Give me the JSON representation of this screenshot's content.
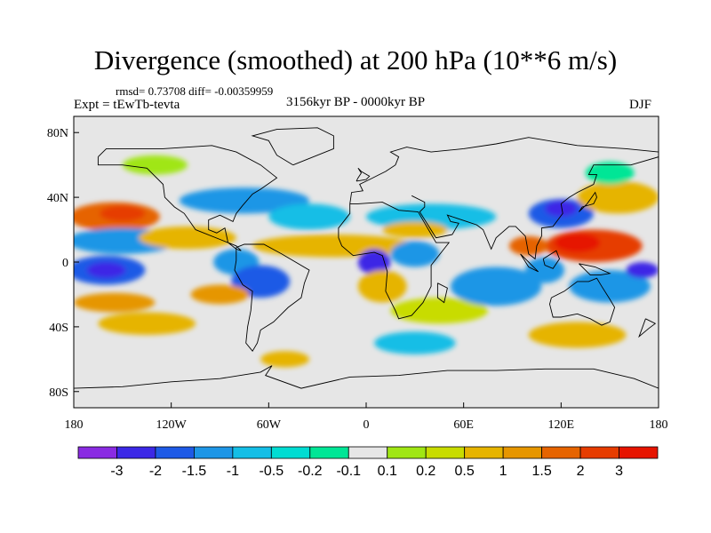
{
  "title": "Divergence (smoothed) at 200 hPa (10**6 m/s)",
  "stats": "rmsd= 0.73708 diff= -0.00359959",
  "experiment": "Expt = tEwTb-tevta",
  "period": "3156kyr BP - 0000kyr BP",
  "season": "DJF",
  "map": {
    "projection": "cylindrical-equidistant",
    "lon_range": [
      -180,
      180
    ],
    "lat_range": [
      -90,
      90
    ],
    "background_color": "#e6e6e6",
    "coastline_color": "#000000"
  },
  "x_ticks": [
    {
      "value": -180,
      "label": "180"
    },
    {
      "value": -120,
      "label": "120W"
    },
    {
      "value": -60,
      "label": "60W"
    },
    {
      "value": 0,
      "label": "0"
    },
    {
      "value": 60,
      "label": "60E"
    },
    {
      "value": 120,
      "label": "120E"
    },
    {
      "value": 180,
      "label": "180"
    }
  ],
  "y_ticks": [
    {
      "value": 80,
      "label": "80N"
    },
    {
      "value": 40,
      "label": "40N"
    },
    {
      "value": 0,
      "label": "0"
    },
    {
      "value": -40,
      "label": "40S"
    },
    {
      "value": -80,
      "label": "80S"
    }
  ],
  "colorbar": {
    "colors": [
      "#8a2be2",
      "#3c28e6",
      "#1e5ae6",
      "#1e96e6",
      "#14bee6",
      "#00dcd2",
      "#00e696",
      "#e6e6e6",
      "#a0e614",
      "#c8dc00",
      "#e6b400",
      "#e69600",
      "#e66400",
      "#e63c00",
      "#e61400"
    ],
    "labels": [
      "-3",
      "-2",
      "-1.5",
      "-1",
      "-0.5",
      "-0.2",
      "-0.1",
      "0.1",
      "0.2",
      "0.5",
      "1",
      "1.5",
      "2",
      "3"
    ]
  },
  "regions": [
    {
      "lon": -155,
      "lat": 28,
      "rx": 28,
      "ry": 9,
      "color": "#e66400"
    },
    {
      "lon": -150,
      "lat": 30,
      "rx": 14,
      "ry": 5,
      "color": "#e63c00"
    },
    {
      "lon": -150,
      "lat": 13,
      "rx": 34,
      "ry": 8,
      "color": "#1e96e6"
    },
    {
      "lon": -160,
      "lat": -5,
      "rx": 24,
      "ry": 9,
      "color": "#1e5ae6"
    },
    {
      "lon": -160,
      "lat": -5,
      "rx": 12,
      "ry": 5,
      "color": "#3c28e6"
    },
    {
      "lon": -155,
      "lat": -25,
      "rx": 25,
      "ry": 6,
      "color": "#e69600"
    },
    {
      "lon": -135,
      "lat": -38,
      "rx": 30,
      "ry": 7,
      "color": "#e6b400"
    },
    {
      "lon": -110,
      "lat": 15,
      "rx": 30,
      "ry": 7,
      "color": "#e6b400"
    },
    {
      "lon": -80,
      "lat": 0,
      "rx": 14,
      "ry": 8,
      "color": "#1e96e6"
    },
    {
      "lon": -65,
      "lat": -12,
      "rx": 18,
      "ry": 10,
      "color": "#1e5ae6"
    },
    {
      "lon": -90,
      "lat": -20,
      "rx": 18,
      "ry": 6,
      "color": "#e69600"
    },
    {
      "lon": -75,
      "lat": 38,
      "rx": 40,
      "ry": 8,
      "color": "#1e96e6"
    },
    {
      "lon": -35,
      "lat": 28,
      "rx": 25,
      "ry": 8,
      "color": "#14bee6"
    },
    {
      "lon": -20,
      "lat": 10,
      "rx": 50,
      "ry": 7,
      "color": "#e6b400"
    },
    {
      "lon": 5,
      "lat": 0,
      "rx": 10,
      "ry": 8,
      "color": "#3c28e6"
    },
    {
      "lon": 30,
      "lat": 5,
      "rx": 15,
      "ry": 8,
      "color": "#1e96e6"
    },
    {
      "lon": 40,
      "lat": 28,
      "rx": 40,
      "ry": 8,
      "color": "#14bee6"
    },
    {
      "lon": 30,
      "lat": 20,
      "rx": 20,
      "ry": 5,
      "color": "#e6b400"
    },
    {
      "lon": 10,
      "lat": -15,
      "rx": 15,
      "ry": 10,
      "color": "#e6b400"
    },
    {
      "lon": 45,
      "lat": -30,
      "rx": 30,
      "ry": 8,
      "color": "#c8dc00"
    },
    {
      "lon": 80,
      "lat": -15,
      "rx": 28,
      "ry": 12,
      "color": "#1e96e6"
    },
    {
      "lon": 120,
      "lat": 30,
      "rx": 20,
      "ry": 9,
      "color": "#1e5ae6"
    },
    {
      "lon": 120,
      "lat": 33,
      "rx": 10,
      "ry": 5,
      "color": "#3c28e6"
    },
    {
      "lon": 140,
      "lat": 10,
      "rx": 30,
      "ry": 10,
      "color": "#e63c00"
    },
    {
      "lon": 130,
      "lat": 12,
      "rx": 14,
      "ry": 6,
      "color": "#e61400"
    },
    {
      "lon": 100,
      "lat": 10,
      "rx": 12,
      "ry": 6,
      "color": "#e66400"
    },
    {
      "lon": 110,
      "lat": -5,
      "rx": 12,
      "ry": 8,
      "color": "#1e96e6"
    },
    {
      "lon": 150,
      "lat": -15,
      "rx": 25,
      "ry": 10,
      "color": "#1e96e6"
    },
    {
      "lon": 170,
      "lat": -5,
      "rx": 10,
      "ry": 5,
      "color": "#3c28e6"
    },
    {
      "lon": 155,
      "lat": 40,
      "rx": 25,
      "ry": 10,
      "color": "#e6b400"
    },
    {
      "lon": 130,
      "lat": -45,
      "rx": 30,
      "ry": 8,
      "color": "#e6b400"
    },
    {
      "lon": 30,
      "lat": -50,
      "rx": 25,
      "ry": 7,
      "color": "#14bee6"
    },
    {
      "lon": -50,
      "lat": -60,
      "rx": 15,
      "ry": 5,
      "color": "#e6b400"
    },
    {
      "lon": 150,
      "lat": 55,
      "rx": 15,
      "ry": 7,
      "color": "#00e696"
    },
    {
      "lon": -130,
      "lat": 60,
      "rx": 20,
      "ry": 6,
      "color": "#a0e614"
    }
  ],
  "coastlines": [
    [
      [
        -165,
        65
      ],
      [
        -160,
        70
      ],
      [
        -140,
        70
      ],
      [
        -125,
        70
      ],
      [
        -95,
        72
      ],
      [
        -80,
        68
      ],
      [
        -65,
        60
      ],
      [
        -55,
        52
      ],
      [
        -65,
        45
      ],
      [
        -70,
        42
      ],
      [
        -76,
        35
      ],
      [
        -80,
        30
      ],
      [
        -82,
        25
      ],
      [
        -90,
        29
      ],
      [
        -97,
        26
      ],
      [
        -97,
        20
      ],
      [
        -92,
        18
      ],
      [
        -87,
        21
      ],
      [
        -85,
        12
      ],
      [
        -80,
        8
      ],
      [
        -77,
        7
      ],
      [
        -80,
        10
      ],
      [
        -90,
        14
      ],
      [
        -105,
        20
      ],
      [
        -112,
        30
      ],
      [
        -118,
        34
      ],
      [
        -124,
        40
      ],
      [
        -125,
        48
      ],
      [
        -135,
        58
      ],
      [
        -150,
        60
      ],
      [
        -165,
        60
      ],
      [
        -165,
        65
      ]
    ],
    [
      [
        -80,
        9
      ],
      [
        -75,
        11
      ],
      [
        -63,
        11
      ],
      [
        -52,
        5
      ],
      [
        -35,
        -5
      ],
      [
        -38,
        -13
      ],
      [
        -40,
        -22
      ],
      [
        -48,
        -28
      ],
      [
        -57,
        -37
      ],
      [
        -65,
        -42
      ],
      [
        -67,
        -50
      ],
      [
        -70,
        -55
      ],
      [
        -74,
        -50
      ],
      [
        -73,
        -40
      ],
      [
        -71,
        -30
      ],
      [
        -70,
        -18
      ],
      [
        -76,
        -14
      ],
      [
        -81,
        -5
      ],
      [
        -80,
        1
      ],
      [
        -80,
        9
      ]
    ],
    [
      [
        -10,
        36
      ],
      [
        -5,
        36
      ],
      [
        10,
        37
      ],
      [
        20,
        32
      ],
      [
        32,
        31
      ],
      [
        43,
        12
      ],
      [
        51,
        12
      ],
      [
        40,
        -2
      ],
      [
        40,
        -15
      ],
      [
        35,
        -25
      ],
      [
        28,
        -33
      ],
      [
        20,
        -35
      ],
      [
        18,
        -30
      ],
      [
        12,
        -18
      ],
      [
        13,
        -6
      ],
      [
        10,
        4
      ],
      [
        5,
        6
      ],
      [
        -8,
        4
      ],
      [
        -15,
        10
      ],
      [
        -17,
        15
      ],
      [
        -17,
        21
      ],
      [
        -10,
        30
      ],
      [
        -10,
        36
      ]
    ],
    [
      [
        -10,
        36
      ],
      [
        -9,
        43
      ],
      [
        -2,
        44
      ],
      [
        -4,
        48
      ],
      [
        2,
        51
      ],
      [
        8,
        54
      ],
      [
        12,
        56
      ],
      [
        18,
        60
      ],
      [
        20,
        65
      ],
      [
        15,
        68
      ],
      [
        25,
        71
      ],
      [
        40,
        68
      ],
      [
        60,
        70
      ],
      [
        80,
        73
      ],
      [
        100,
        77
      ],
      [
        130,
        72
      ],
      [
        160,
        70
      ],
      [
        180,
        68
      ]
    ],
    [
      [
        28,
        41
      ],
      [
        36,
        37
      ],
      [
        36,
        34
      ],
      [
        33,
        31
      ],
      [
        43,
        15
      ],
      [
        53,
        17
      ],
      [
        57,
        24
      ],
      [
        52,
        25
      ],
      [
        50,
        29
      ],
      [
        56,
        27
      ],
      [
        62,
        25
      ],
      [
        68,
        23
      ],
      [
        72,
        20
      ],
      [
        77,
        8
      ],
      [
        80,
        15
      ],
      [
        88,
        22
      ],
      [
        92,
        22
      ],
      [
        98,
        16
      ],
      [
        100,
        5
      ],
      [
        104,
        2
      ],
      [
        105,
        10
      ],
      [
        108,
        16
      ],
      [
        108,
        21
      ],
      [
        115,
        22
      ],
      [
        121,
        30
      ],
      [
        120,
        36
      ],
      [
        125,
        40
      ],
      [
        130,
        43
      ],
      [
        140,
        48
      ],
      [
        142,
        54
      ],
      [
        137,
        54
      ],
      [
        140,
        60
      ],
      [
        155,
        60
      ],
      [
        163,
        60
      ],
      [
        180,
        65
      ]
    ],
    [
      [
        114,
        -22
      ],
      [
        122,
        -18
      ],
      [
        130,
        -12
      ],
      [
        137,
        -12
      ],
      [
        142,
        -10
      ],
      [
        145,
        -15
      ],
      [
        150,
        -23
      ],
      [
        153,
        -28
      ],
      [
        150,
        -37
      ],
      [
        145,
        -39
      ],
      [
        138,
        -35
      ],
      [
        130,
        -32
      ],
      [
        120,
        -34
      ],
      [
        115,
        -34
      ],
      [
        113,
        -26
      ],
      [
        114,
        -22
      ]
    ],
    [
      [
        -180,
        -78
      ],
      [
        -150,
        -77
      ],
      [
        -120,
        -74
      ],
      [
        -90,
        -72
      ],
      [
        -65,
        -68
      ],
      [
        -58,
        -64
      ],
      [
        -62,
        -70
      ],
      [
        -40,
        -78
      ],
      [
        -10,
        -71
      ],
      [
        20,
        -70
      ],
      [
        50,
        -67
      ],
      [
        80,
        -67
      ],
      [
        110,
        -66
      ],
      [
        140,
        -66
      ],
      [
        165,
        -72
      ],
      [
        180,
        -78
      ]
    ],
    [
      [
        -45,
        60
      ],
      [
        -55,
        66
      ],
      [
        -60,
        75
      ],
      [
        -70,
        78
      ],
      [
        -55,
        82
      ],
      [
        -30,
        83
      ],
      [
        -20,
        78
      ],
      [
        -20,
        70
      ],
      [
        -45,
        60
      ]
    ],
    [
      [
        131,
        31
      ],
      [
        133,
        34
      ],
      [
        140,
        36
      ],
      [
        142,
        40
      ],
      [
        141,
        43
      ],
      [
        136,
        36
      ],
      [
        131,
        31
      ]
    ],
    [
      [
        95,
        5
      ],
      [
        100,
        0
      ],
      [
        104,
        -4
      ],
      [
        106,
        -6
      ],
      [
        100,
        -3
      ],
      [
        95,
        5
      ]
    ],
    [
      [
        109,
        2
      ],
      [
        117,
        7
      ],
      [
        119,
        2
      ],
      [
        115,
        -4
      ],
      [
        110,
        -2
      ],
      [
        109,
        2
      ]
    ],
    [
      [
        131,
        -1
      ],
      [
        141,
        -3
      ],
      [
        150,
        -7
      ],
      [
        144,
        -8
      ],
      [
        138,
        -8
      ],
      [
        131,
        -1
      ]
    ],
    [
      [
        44,
        -13
      ],
      [
        50,
        -16
      ],
      [
        48,
        -25
      ],
      [
        44,
        -22
      ],
      [
        44,
        -13
      ]
    ],
    [
      [
        -6,
        50
      ],
      [
        0,
        51
      ],
      [
        2,
        53
      ],
      [
        -3,
        56
      ],
      [
        -5,
        58
      ],
      [
        -3,
        55
      ],
      [
        -5,
        52
      ],
      [
        -6,
        50
      ]
    ],
    [
      [
        172,
        -35
      ],
      [
        178,
        -38
      ],
      [
        174,
        -41
      ],
      [
        168,
        -46
      ],
      [
        172,
        -35
      ]
    ]
  ]
}
